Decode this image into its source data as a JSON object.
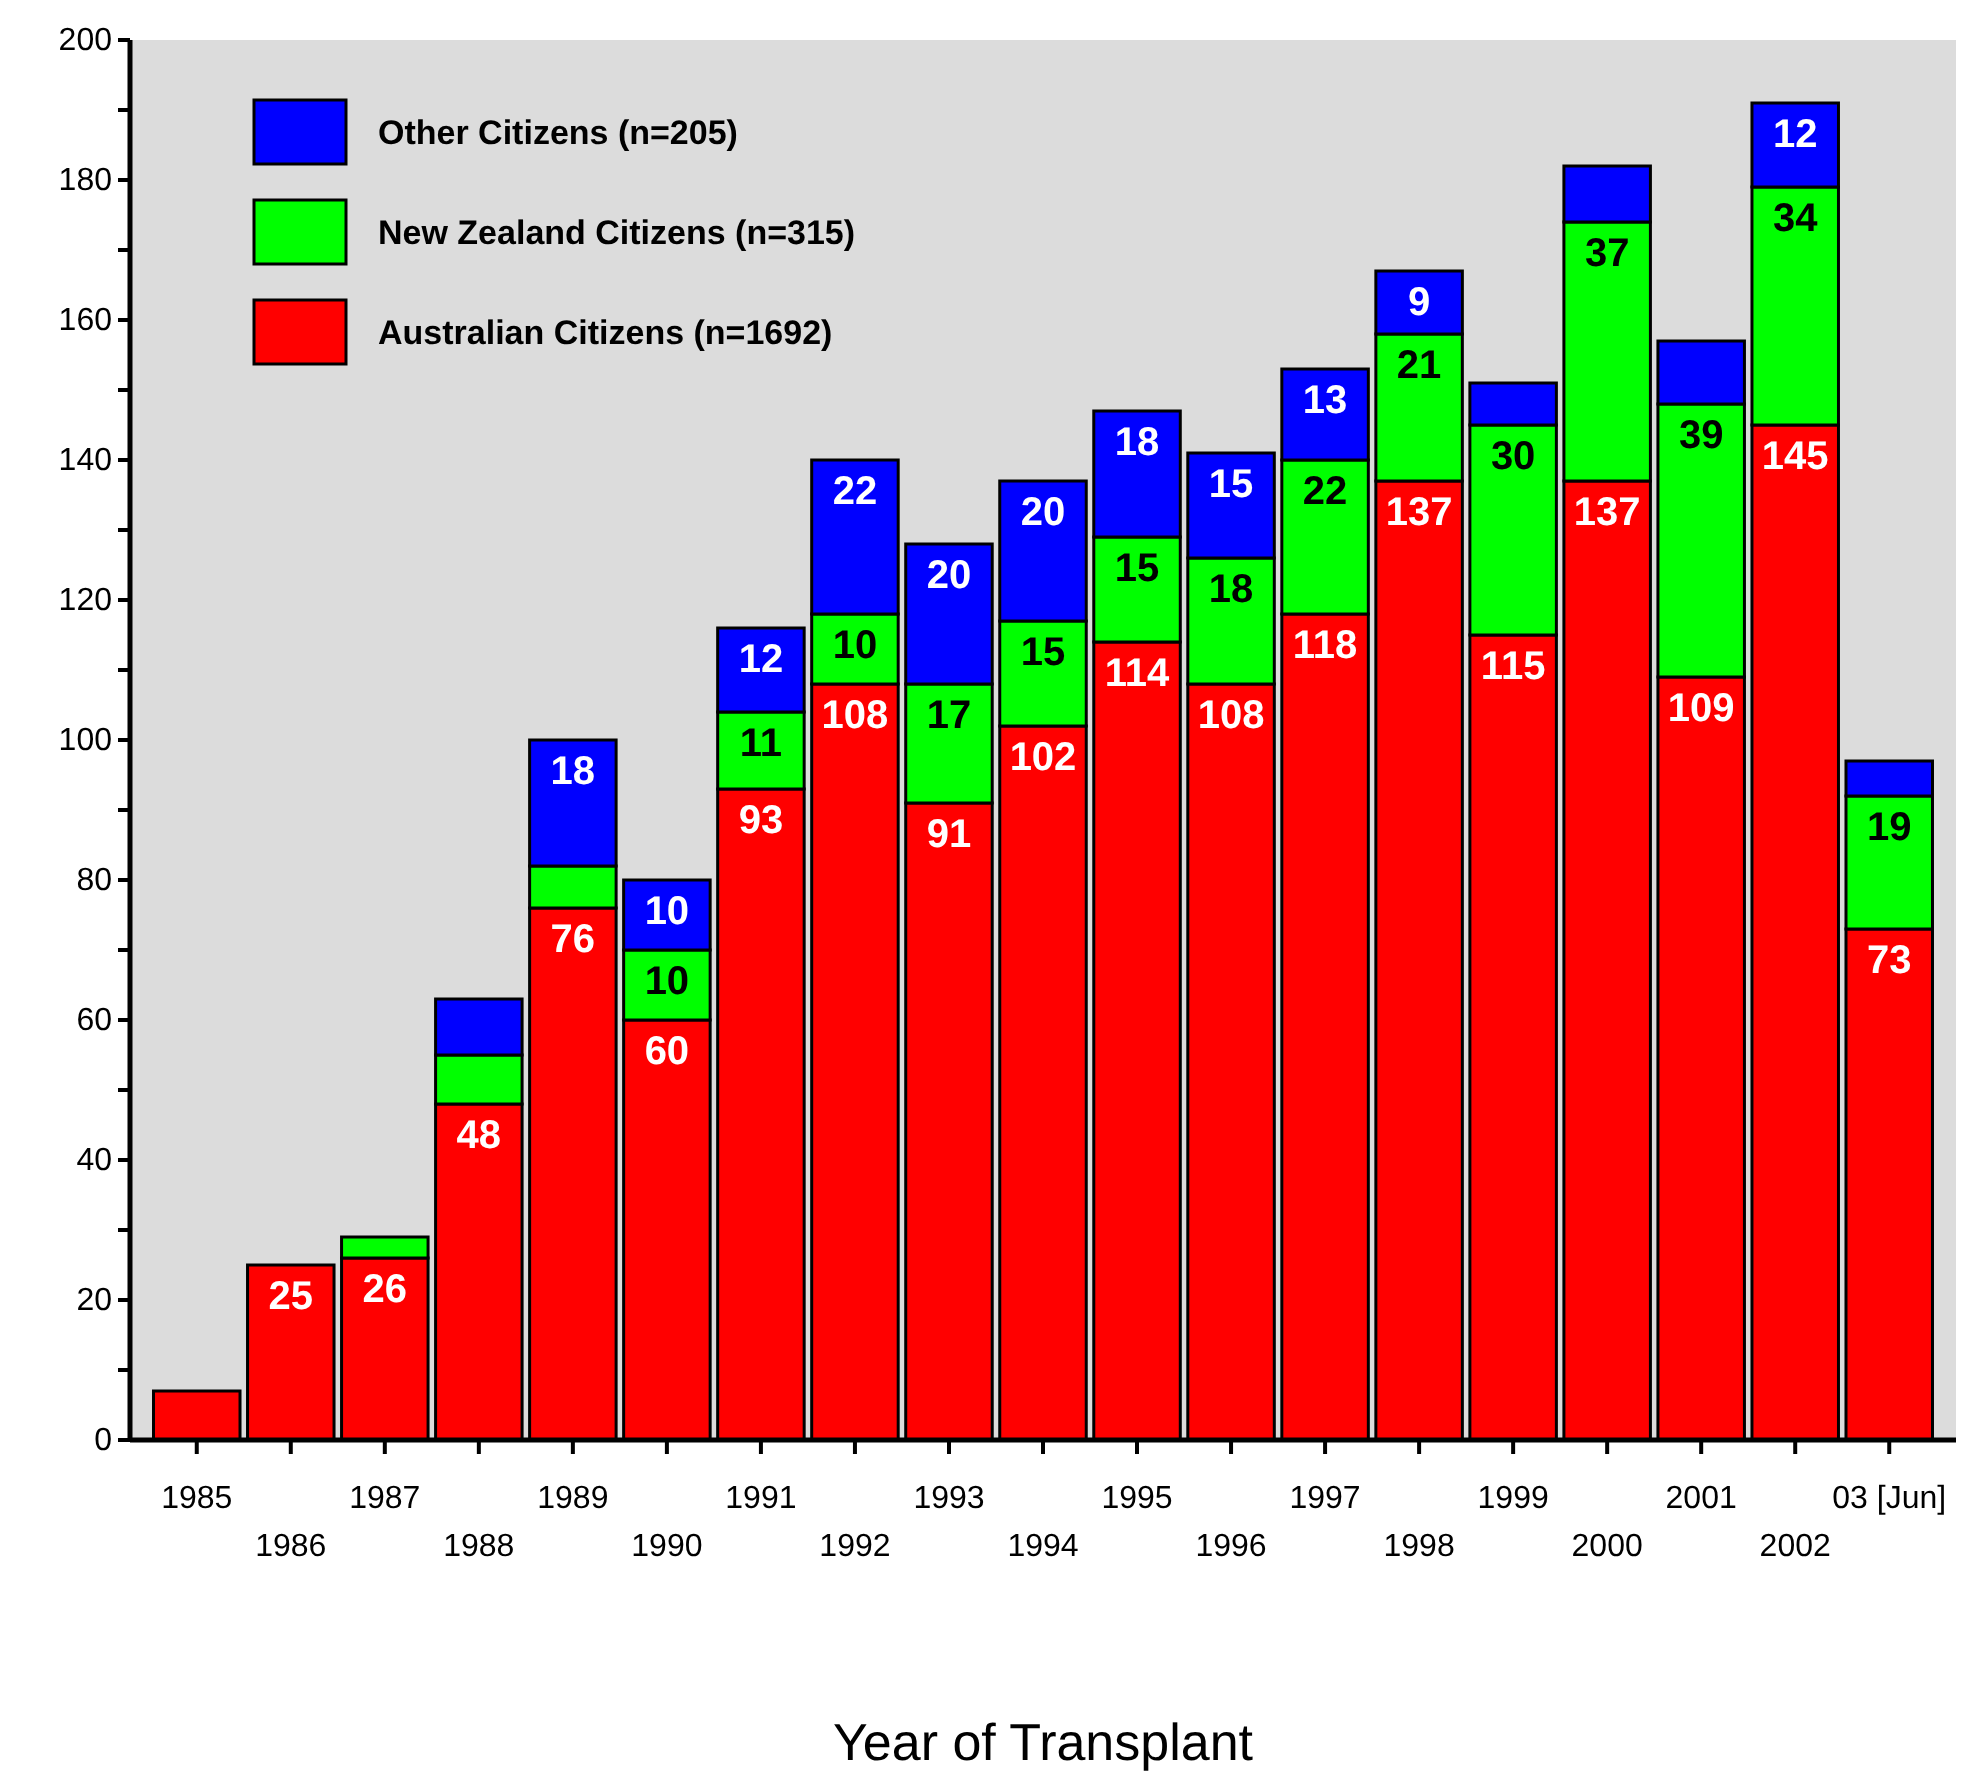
{
  "chart_data": {
    "type": "bar",
    "stacked": true,
    "xlabel": "Year of Transplant",
    "categories": [
      "1985",
      "1986",
      "1987",
      "1988",
      "1989",
      "1990",
      "1991",
      "1992",
      "1993",
      "1994",
      "1995",
      "1996",
      "1997",
      "1998",
      "1999",
      "2000",
      "2001",
      "2002",
      "03 [Jun]"
    ],
    "series": [
      {
        "name": "Australian Citizens (n=1692)",
        "color": "#ff0000",
        "values": [
          7,
          25,
          26,
          48,
          76,
          60,
          93,
          108,
          91,
          102,
          114,
          108,
          118,
          137,
          115,
          137,
          109,
          145,
          73
        ],
        "value_labels": [
          null,
          "25",
          "26",
          "48",
          "76",
          "60",
          "93",
          "108",
          "91",
          "102",
          "114",
          "108",
          "118",
          "137",
          "115",
          "137",
          "109",
          "145",
          "73"
        ]
      },
      {
        "name": "New Zealand Citizens (n=315)",
        "color": "#00ff00",
        "values": [
          0,
          0,
          3,
          7,
          6,
          10,
          11,
          10,
          17,
          15,
          15,
          18,
          22,
          21,
          30,
          37,
          39,
          34,
          19
        ],
        "value_labels": [
          null,
          null,
          null,
          null,
          null,
          "10",
          "11",
          "10",
          "17",
          "15",
          "15",
          "18",
          "22",
          "21",
          "30",
          "37",
          "39",
          "34",
          "19"
        ]
      },
      {
        "name": "Other Citizens (n=205)",
        "color": "#0000ff",
        "values": [
          0,
          0,
          0,
          8,
          18,
          10,
          12,
          22,
          20,
          20,
          18,
          15,
          13,
          9,
          6,
          8,
          9,
          12,
          5
        ],
        "value_labels": [
          null,
          null,
          null,
          null,
          "18",
          "10",
          "12",
          "22",
          "20",
          "20",
          "18",
          "15",
          "13",
          "9",
          null,
          null,
          null,
          "12",
          null
        ]
      }
    ],
    "ylim": [
      0,
      200
    ],
    "yticks": [
      0,
      {
        "value": 10,
        "label": null
      },
      20,
      {
        "value": 30,
        "label": null
      },
      40,
      {
        "value": 50,
        "label": null
      },
      60,
      {
        "value": 70,
        "label": null
      },
      80,
      {
        "value": 90,
        "label": null
      },
      100,
      {
        "value": 110,
        "label": null
      },
      120,
      {
        "value": 130,
        "label": null
      },
      140,
      {
        "value": 150,
        "label": null
      },
      160,
      {
        "value": 170,
        "label": null
      },
      180,
      {
        "value": 190,
        "label": null
      },
      200
    ],
    "grid": false,
    "legend": "top left"
  }
}
